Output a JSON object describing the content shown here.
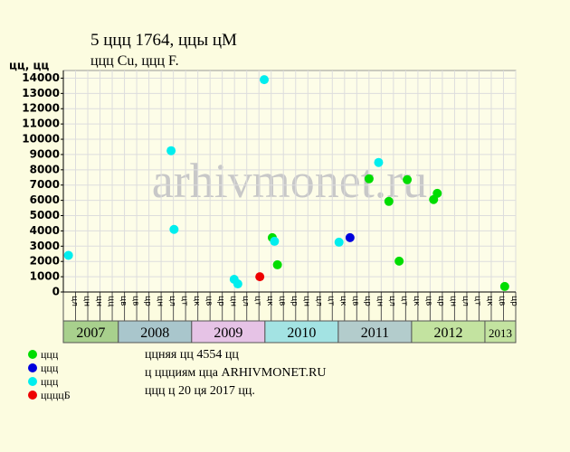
{
  "chart_data": {
    "type": "scatter",
    "title": "5 ццц 1764, ццы цМ",
    "subtitle": "ццц Cu, ццц F.",
    "y_label": "цц, цц",
    "watermark": "arhivmonet.ru",
    "xlim": [
      2007.25,
      2013.42
    ],
    "ylim": [
      0,
      14500
    ],
    "yticks": [
      0,
      1000,
      2000,
      3000,
      4000,
      5000,
      6000,
      7000,
      8000,
      9000,
      10000,
      11000,
      12000,
      13000,
      14000
    ],
    "grid": true,
    "period_labels": [
      "цл",
      "цн",
      "цн",
      "цц",
      "цв",
      "цв",
      "цр",
      "цн",
      "цл",
      "цт",
      "цк",
      "цв",
      "цр",
      "цн",
      "цл",
      "цт",
      "цк",
      "цв",
      "цр",
      "цн",
      "цл",
      "цт",
      "цк",
      "цв",
      "цр",
      "цн",
      "цл",
      "цт",
      "цк",
      "цв",
      "цр",
      "цн",
      "цл",
      "цт",
      "цк",
      "цв",
      "цр"
    ],
    "year_bands": [
      {
        "label": "2007",
        "start": 2007.25,
        "end": 2008,
        "color": "#a8d08d"
      },
      {
        "label": "2008",
        "start": 2008,
        "end": 2009,
        "color": "#a9c6cc"
      },
      {
        "label": "2009",
        "start": 2009,
        "end": 2010,
        "color": "#e6c3e6"
      },
      {
        "label": "2010",
        "start": 2010,
        "end": 2011,
        "color": "#a3e3e3"
      },
      {
        "label": "2011",
        "start": 2011,
        "end": 2012,
        "color": "#b3cccc"
      },
      {
        "label": "2012",
        "start": 2012,
        "end": 2013,
        "color": "#c3e3a0"
      },
      {
        "label": "2013",
        "start": 2013,
        "end": 2013.42,
        "color": "#c3e3a0"
      }
    ],
    "series": [
      {
        "name": "ццц",
        "color": "#00dd00",
        "x": [
          2010.1,
          2010.17,
          2011.42,
          2011.69,
          2011.83,
          2011.94,
          2012.3,
          2012.35,
          2013.27
        ],
        "values": [
          3560,
          1780,
          7410,
          5930,
          2020,
          7350,
          6050,
          6460,
          360
        ]
      },
      {
        "name": "ццц",
        "color": "#0000dd",
        "x": [
          2011.16
        ],
        "values": [
          3560
        ]
      },
      {
        "name": "ццц",
        "color": "#00eeee",
        "x": [
          2007.32,
          2008.72,
          2008.76,
          2009.58,
          2009.63,
          2009.99,
          2010.13,
          2011.01,
          2011.55
        ],
        "values": [
          2400,
          9250,
          4100,
          830,
          530,
          13900,
          3320,
          3260,
          8480
        ]
      },
      {
        "name": "ццццБ",
        "color": "#ee0000",
        "x": [
          2009.93
        ],
        "values": [
          1000
        ]
      }
    ],
    "notes": [
      "ццняя цц 4554 цц",
      "ц ццциям цца ARHIVMONET.RU",
      "ццц ц 20 ця 2017 цц."
    ]
  }
}
